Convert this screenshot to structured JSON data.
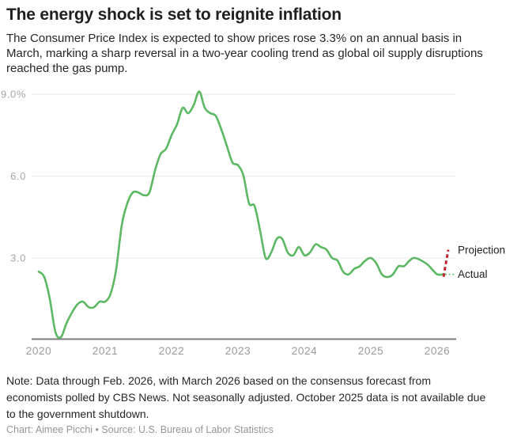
{
  "header": {
    "title": "The energy shock is set to reignite inflation",
    "subtitle": "The Consumer Price Index is expected to show prices rose 3.3% on an annual basis in March, marking a sharp reversal in a two-year cooling trend as global oil supply disruptions reached the gas pump."
  },
  "footer": {
    "note": "Note: Data through Feb. 2026, with March 2026 based on the consensus forecast from economists polled by CBS News. Not seasonally adjusted. October 2025 data is not available due to the government shutdown.",
    "credit": "Chart: Aimee Picchi • Source: U.S. Bureau of Labor Statistics"
  },
  "chart_data": {
    "type": "line",
    "title": "The energy shock is set to reignite inflation",
    "unit": "% change year over year",
    "frequency": "monthly",
    "x_start": "2020-01",
    "x_end_actual": "2026-02",
    "x_projection": "2026-03",
    "x_tick_labels": [
      "2020",
      "2021",
      "2022",
      "2023",
      "2024",
      "2025",
      "2026"
    ],
    "y_tick_labels": [
      "9.0%",
      "6.0",
      "3.0"
    ],
    "y_tick_values": [
      9.0,
      6.0,
      3.0
    ],
    "ylim": [
      0,
      9.3
    ],
    "grid": "horizontal",
    "legend_position": "right-annotations",
    "series": [
      {
        "name": "Actual",
        "color": "#5cb863",
        "style": "solid",
        "note": "null = Oct. 2025 not available due to government shutdown",
        "values": [
          2.5,
          2.3,
          1.5,
          0.3,
          0.1,
          0.6,
          1.0,
          1.3,
          1.4,
          1.2,
          1.2,
          1.4,
          1.4,
          1.7,
          2.6,
          4.2,
          5.0,
          5.4,
          5.4,
          5.3,
          5.4,
          6.2,
          6.8,
          7.0,
          7.5,
          7.9,
          8.5,
          8.3,
          8.6,
          9.1,
          8.5,
          8.3,
          8.2,
          7.7,
          7.1,
          6.5,
          6.4,
          6.0,
          5.0,
          4.9,
          4.0,
          3.0,
          3.2,
          3.7,
          3.7,
          3.2,
          3.1,
          3.4,
          3.1,
          3.2,
          3.5,
          3.4,
          3.3,
          3.0,
          2.9,
          2.5,
          2.4,
          2.6,
          2.7,
          2.9,
          3.0,
          2.8,
          2.4,
          2.3,
          2.4,
          2.7,
          2.7,
          2.9,
          3.0,
          null,
          2.8,
          2.6,
          2.4,
          2.4
        ]
      },
      {
        "name": "Projection",
        "color": "#c0232e",
        "style": "dashed",
        "x": [
          "2026-02",
          "2026-03"
        ],
        "values": [
          2.4,
          3.3
        ]
      }
    ],
    "annotations": [
      {
        "text": "Projection"
      },
      {
        "text": "Actual"
      }
    ]
  }
}
